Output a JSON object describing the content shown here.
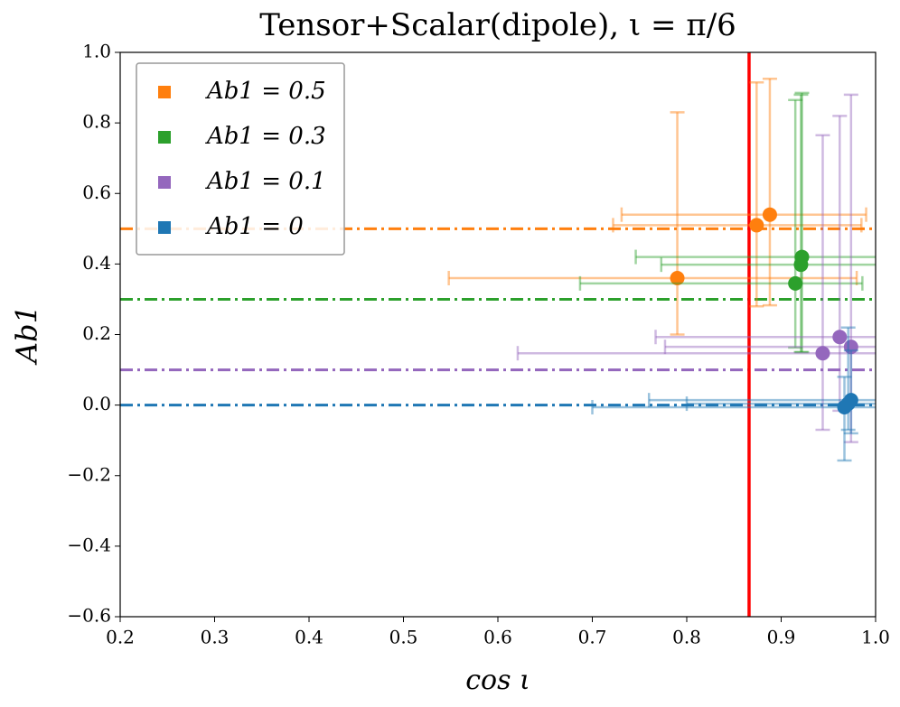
{
  "chart_data": {
    "type": "scatter",
    "title": "Tensor+Scalar(dipole), ι = π/6",
    "x_label": "cos ι",
    "y_label": "Ab1",
    "xlim": [
      0.2,
      1.0
    ],
    "ylim": [
      -0.6,
      1.0
    ],
    "xticks": [
      0.2,
      0.3,
      0.4,
      0.5,
      0.6,
      0.7,
      0.8,
      0.9,
      {
        "value": 1.0,
        "label": "1.0"
      }
    ],
    "yticks": [
      {
        "value": -0.6,
        "label": "−0.6"
      },
      {
        "value": -0.4,
        "label": "−0.4"
      },
      {
        "value": -0.2,
        "label": "−0.2"
      },
      {
        "value": 0,
        "label": "0.0"
      },
      0.2,
      0.4,
      0.6,
      0.8,
      {
        "value": 1.0,
        "label": "1.0"
      }
    ],
    "legend": "upper left",
    "vline": {
      "x": 0.866,
      "color": "#ff0000"
    },
    "series": [
      {
        "name": "Ab1 = 0.5",
        "color": "#ff7f0e",
        "true_value": 0.5,
        "x": [
          0.79,
          0.874,
          0.888
        ],
        "values": [
          0.36,
          0.51,
          0.54
        ],
        "x_range": [
          [
            0.548,
            0.98
          ],
          [
            0.722,
            0.985
          ],
          [
            0.731,
            0.99
          ]
        ],
        "y_range": [
          [
            0.2,
            0.83
          ],
          [
            0.28,
            0.915
          ],
          [
            0.283,
            0.925
          ]
        ]
      },
      {
        "name": "Ab1 = 0.3",
        "color": "#2ca02c",
        "true_value": 0.3,
        "x": [
          0.915,
          0.921,
          0.922
        ],
        "values": [
          0.345,
          0.398,
          0.42
        ],
        "x_range": [
          [
            0.687,
            0.986
          ],
          [
            0.773,
            1.01
          ],
          [
            0.746,
            1.009
          ]
        ],
        "y_range": [
          [
            0.163,
            0.865
          ],
          [
            0.15,
            0.88
          ],
          [
            0.15,
            0.885
          ]
        ]
      },
      {
        "name": "Ab1 = 0.1",
        "color": "#9467bd",
        "true_value": 0.1,
        "x": [
          0.944,
          0.962,
          0.974
        ],
        "values": [
          0.147,
          0.193,
          0.165
        ],
        "x_range": [
          [
            0.621,
            1.03
          ],
          [
            0.767,
            1.03
          ],
          [
            0.777,
            1.03
          ]
        ],
        "y_range": [
          [
            -0.07,
            0.765
          ],
          [
            -0.016,
            0.82
          ],
          [
            -0.105,
            0.88
          ]
        ]
      },
      {
        "name": "Ab1 = 0",
        "color": "#1f77b4",
        "true_value": 0,
        "x": [
          0.967,
          0.974,
          0.971
        ],
        "values": [
          -0.006,
          0.014,
          0.004
        ],
        "x_range": [
          [
            0.7,
            1.03
          ],
          [
            0.76,
            1.03
          ],
          [
            0.8,
            1.03
          ]
        ],
        "y_range": [
          [
            -0.157,
            0.08
          ],
          [
            -0.08,
            0.155
          ],
          [
            -0.07,
            0.22
          ]
        ]
      }
    ]
  }
}
